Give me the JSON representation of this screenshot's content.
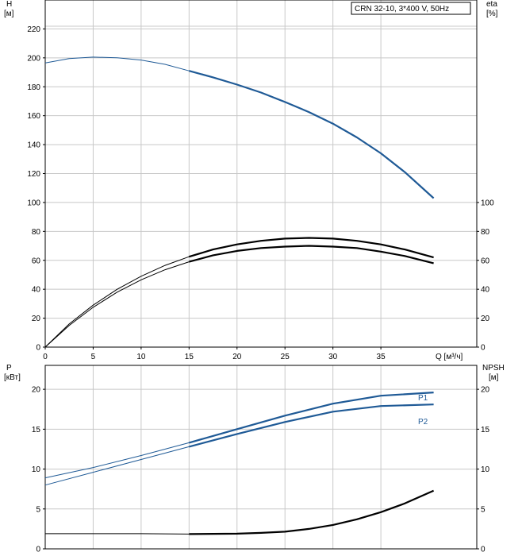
{
  "chart_data": [
    {
      "type": "line",
      "title": "CRN 32-10, 3*400 V, 50Hz",
      "xlabel": "Q [м³/ч]",
      "xlim": [
        0,
        45
      ],
      "x_ticks": [
        0,
        5,
        10,
        15,
        20,
        25,
        30,
        35
      ],
      "ylabel_left_line1": "H",
      "ylabel_left_line2": "[м]",
      "ylim_left": [
        0,
        240
      ],
      "y_ticks_left": [
        0,
        20,
        40,
        60,
        80,
        100,
        120,
        140,
        160,
        180,
        200,
        220
      ],
      "ylabel_right_line1": "eta",
      "ylabel_right_line2": "[%]",
      "ylim_right": [
        0,
        240
      ],
      "y_ticks_right": [
        0,
        20,
        40,
        60,
        80,
        100
      ],
      "grid": true,
      "series": [
        {
          "axis": "left",
          "color": "#1f5a96",
          "x": [
            0,
            2.5,
            5,
            7.5,
            10,
            12.5,
            15,
            17.5,
            20,
            22.5,
            25,
            27.5,
            30,
            32.5,
            35,
            37.5,
            40.5
          ],
          "y": [
            196.5,
            199.5,
            200.5,
            200,
            198.5,
            195.5,
            191,
            186.5,
            181.5,
            176,
            169.5,
            162.5,
            154.5,
            145,
            134,
            121,
            103
          ]
        },
        {
          "axis": "right",
          "color": "#000000",
          "x": [
            0,
            2.5,
            5,
            7.5,
            10,
            12.5,
            15,
            17.5,
            20,
            22.5,
            25,
            27.5,
            30,
            32.5,
            35,
            37.5,
            40.5
          ],
          "y": [
            0,
            16,
            29,
            40,
            49,
            56.5,
            62.5,
            67.5,
            71,
            73.5,
            75,
            75.5,
            75,
            73.5,
            71,
            67.5,
            62
          ]
        },
        {
          "axis": "right",
          "color": "#000000",
          "x": [
            0,
            2.5,
            5,
            7.5,
            10,
            12.5,
            15,
            17.5,
            20,
            22.5,
            25,
            27.5,
            30,
            32.5,
            35,
            37.5,
            40.5
          ],
          "y": [
            0,
            15,
            27.5,
            38,
            46.5,
            53.5,
            59,
            63.5,
            66.5,
            68.5,
            69.5,
            70,
            69.5,
            68.5,
            66,
            63,
            58
          ]
        }
      ]
    },
    {
      "type": "line",
      "xlim": [
        0,
        45
      ],
      "ylabel_left_line1": "P",
      "ylabel_left_line2": "[кВт]",
      "ylim_left": [
        0,
        23
      ],
      "y_ticks_left": [
        0,
        5,
        10,
        15,
        20
      ],
      "ylabel_right_line1": "NPSH",
      "ylabel_right_line2": "[м]",
      "ylim_right": [
        0,
        23
      ],
      "y_ticks_right": [
        0,
        5,
        10,
        15,
        20
      ],
      "grid": true,
      "series": [
        {
          "name": "P1",
          "axis": "left",
          "color": "#1f5a96",
          "x": [
            0,
            5,
            10,
            15,
            20,
            25,
            30,
            35,
            40.5
          ],
          "y": [
            8.9,
            10.2,
            11.7,
            13.3,
            15.0,
            16.7,
            18.2,
            19.2,
            19.6
          ]
        },
        {
          "name": "P2",
          "axis": "left",
          "color": "#1f5a96",
          "x": [
            0,
            5,
            10,
            15,
            20,
            25,
            30,
            35,
            40.5
          ],
          "y": [
            8.0,
            9.6,
            11.2,
            12.8,
            14.4,
            15.9,
            17.2,
            17.9,
            18.1
          ]
        },
        {
          "axis": "right",
          "color": "#000000",
          "x": [
            0,
            5,
            10,
            15,
            20,
            22.5,
            25,
            27.5,
            30,
            32.5,
            35,
            37.5,
            40.5
          ],
          "y": [
            1.9,
            1.9,
            1.9,
            1.85,
            1.9,
            2.0,
            2.15,
            2.5,
            3.0,
            3.7,
            4.6,
            5.7,
            7.3
          ]
        }
      ]
    }
  ]
}
